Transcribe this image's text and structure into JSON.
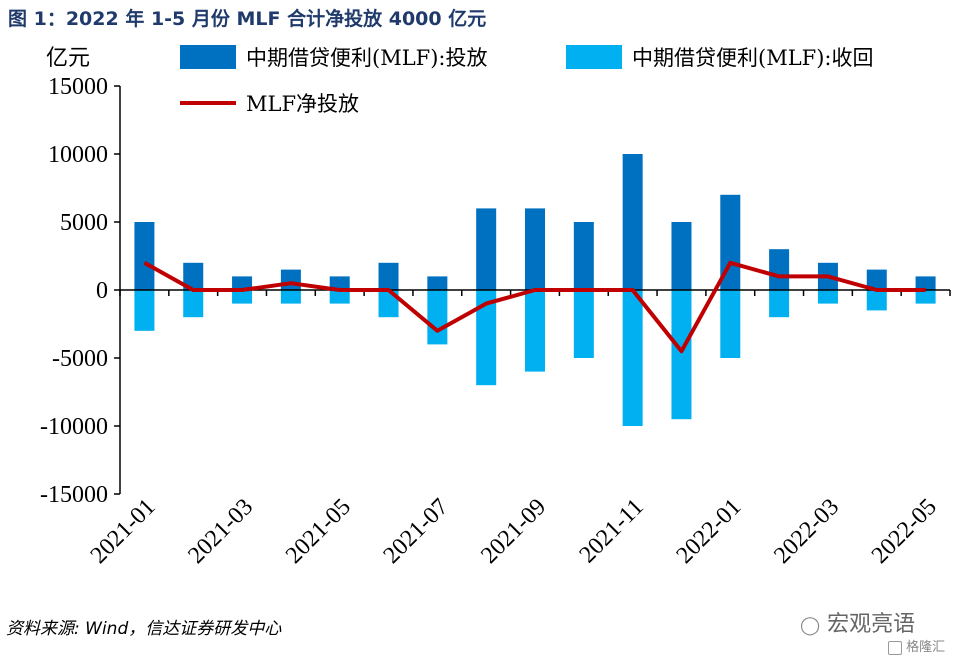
{
  "header": {
    "title": "图 1：2022 年 1-5 月份 MLF 合计净投放 4000 亿元",
    "unit": "亿元"
  },
  "source": "资料来源: Wind，信达证券研发中心",
  "watermark": {
    "brand": "宏观亮语",
    "logo_text": "格隆汇"
  },
  "colors": {
    "inject": "#0070c0",
    "recover": "#00b0f0",
    "net": "#c00000"
  },
  "chart_data": {
    "type": "bar",
    "x": [
      "2021-01",
      "2021-02",
      "2021-03",
      "2021-04",
      "2021-05",
      "2021-06",
      "2021-07",
      "2021-08",
      "2021-09",
      "2021-10",
      "2021-11",
      "2021-12",
      "2022-01",
      "2022-02",
      "2022-03",
      "2022-04",
      "2022-05"
    ],
    "x_tick_labels": [
      "2021-01",
      "2021-03",
      "2021-05",
      "2021-07",
      "2021-09",
      "2021-11",
      "2022-01",
      "2022-03",
      "2022-05"
    ],
    "y_ticks": [
      15000,
      10000,
      5000,
      0,
      -5000,
      -10000,
      -15000
    ],
    "ylim": [
      -15000,
      15000
    ],
    "legend_position": "top",
    "series": [
      {
        "name": "中期借贷便利(MLF):投放",
        "type": "bar",
        "values": [
          5000,
          2000,
          1000,
          1500,
          1000,
          2000,
          1000,
          6000,
          6000,
          5000,
          10000,
          5000,
          7000,
          3000,
          2000,
          1500,
          1000
        ]
      },
      {
        "name": "中期借贷便利(MLF):收回",
        "type": "bar",
        "values": [
          -3000,
          -2000,
          -1000,
          -1000,
          -1000,
          -2000,
          -4000,
          -7000,
          -6000,
          -5000,
          -10000,
          -9500,
          -5000,
          -2000,
          -1000,
          -1500,
          -1000
        ]
      },
      {
        "name": "MLF净投放",
        "type": "line",
        "values": [
          2000,
          0,
          0,
          500,
          0,
          0,
          -3000,
          -1000,
          0,
          0,
          0,
          -4500,
          2000,
          1000,
          1000,
          0,
          0
        ]
      }
    ]
  }
}
